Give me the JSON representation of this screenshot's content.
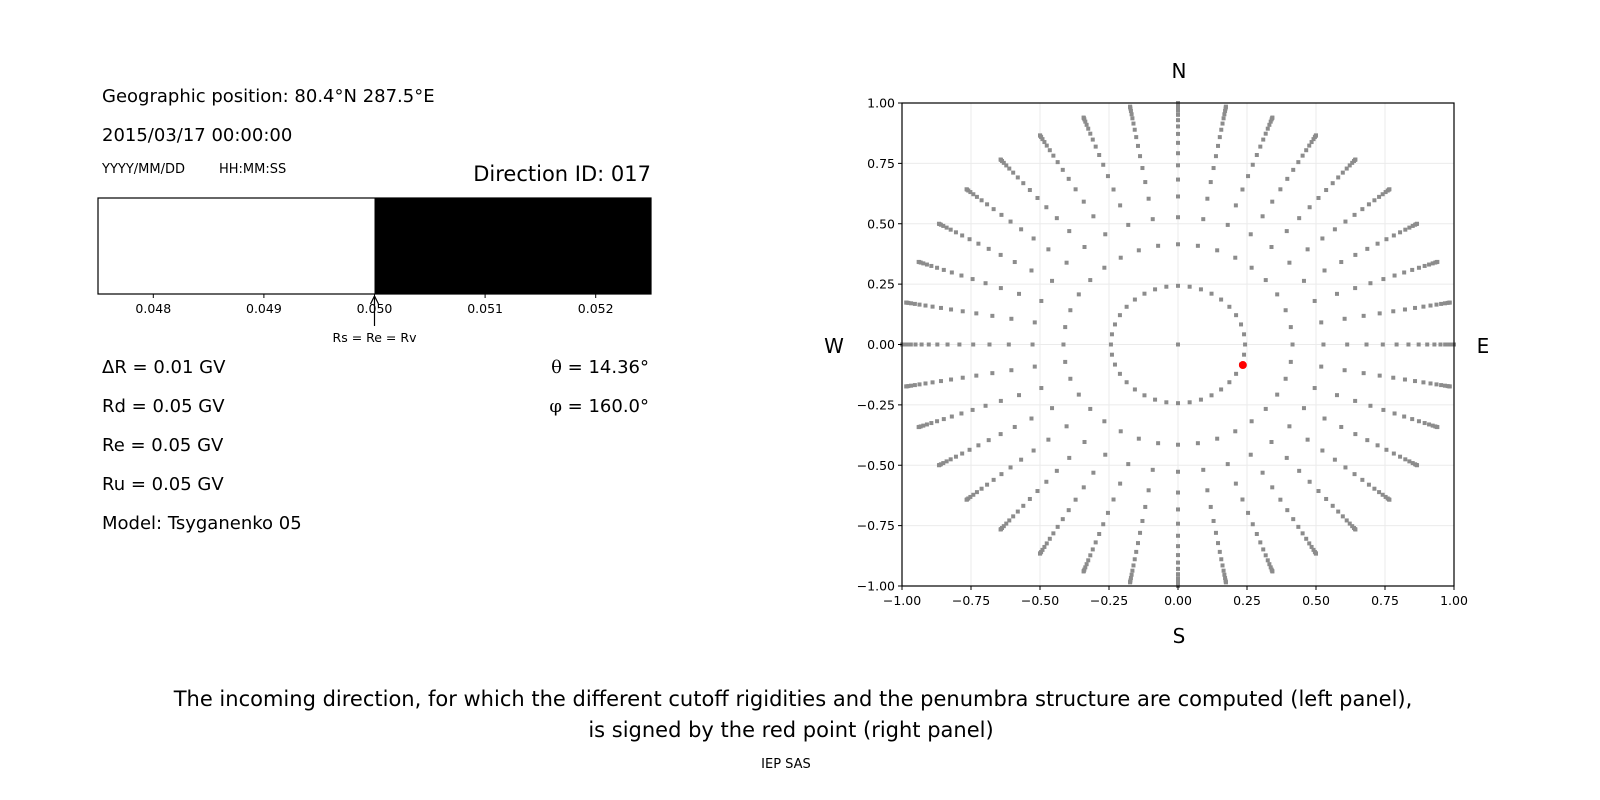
{
  "left_panel": {
    "geo_position": "Geographic position: 80.4°N 287.5°E",
    "datetime": "2015/03/17 00:00:00",
    "date_format": "YYYY/MM/DD",
    "time_format": "HH:MM:SS",
    "direction_id": "Direction ID: 017",
    "delta_r": "ΔR = 0.01 GV",
    "rd": "Rd = 0.05 GV",
    "re": "Re = 0.05 GV",
    "ru": "Ru = 0.05 GV",
    "model": "Model: Tsyganenko 05",
    "theta_symbol": "θ",
    "theta_value": " = 14.36°",
    "phi_symbol": "φ",
    "phi_value": " = 160.0°",
    "arrow_label": "Rs = Re = Rv"
  },
  "chart_data": [
    {
      "type": "bar",
      "xlim": [
        0.0475,
        0.0525
      ],
      "xticks": [
        "0.048",
        "0.049",
        "0.050",
        "0.051",
        "0.052"
      ],
      "tick_values": [
        0.048,
        0.049,
        0.05,
        0.051,
        0.052
      ],
      "segments": [
        {
          "from": 0.0475,
          "to": 0.05,
          "color": "#ffffff"
        },
        {
          "from": 0.05,
          "to": 0.0525,
          "color": "#000000"
        }
      ],
      "annotation": {
        "x": 0.05,
        "text": "Rs = Re = Rv"
      }
    },
    {
      "type": "scatter",
      "xlim": [
        -1.0,
        1.0
      ],
      "ylim": [
        -1.0,
        1.0
      ],
      "grid": true,
      "xticks": [
        "−1.00",
        "−0.75",
        "−0.50",
        "−0.25",
        "0.00",
        "0.25",
        "0.50",
        "0.75",
        "1.00"
      ],
      "yticks": [
        "1.00",
        "0.75",
        "0.50",
        "0.25",
        "0.00",
        "−0.25",
        "−0.50",
        "−0.75",
        "−1.00"
      ],
      "tick_values": [
        -1,
        -0.75,
        -0.5,
        -0.25,
        0,
        0.25,
        0.5,
        0.75,
        1
      ],
      "directions": {
        "north": "N",
        "south": "S",
        "east": "E",
        "west": "W"
      },
      "grid_points": {
        "color": "#8c8c8c",
        "center": [
          0,
          0
        ],
        "azimuth_step_deg": 10,
        "ring_radii": [
          0.243,
          0.415,
          0.527,
          0.613,
          0.683,
          0.742,
          0.792,
          0.835,
          0.872,
          0.903,
          0.929,
          0.951,
          0.968,
          0.982,
          0.992,
          0.998,
          1.0
        ]
      },
      "selected_point": {
        "x": 0.235,
        "y": -0.085,
        "color": "#ff0000"
      }
    }
  ],
  "caption": {
    "line1": "The incoming direction, for which the different cutoff rigidities and the penumbra structure are computed (left panel),",
    "line2": "is signed by the red point (right panel)",
    "credit": "IEP SAS"
  }
}
